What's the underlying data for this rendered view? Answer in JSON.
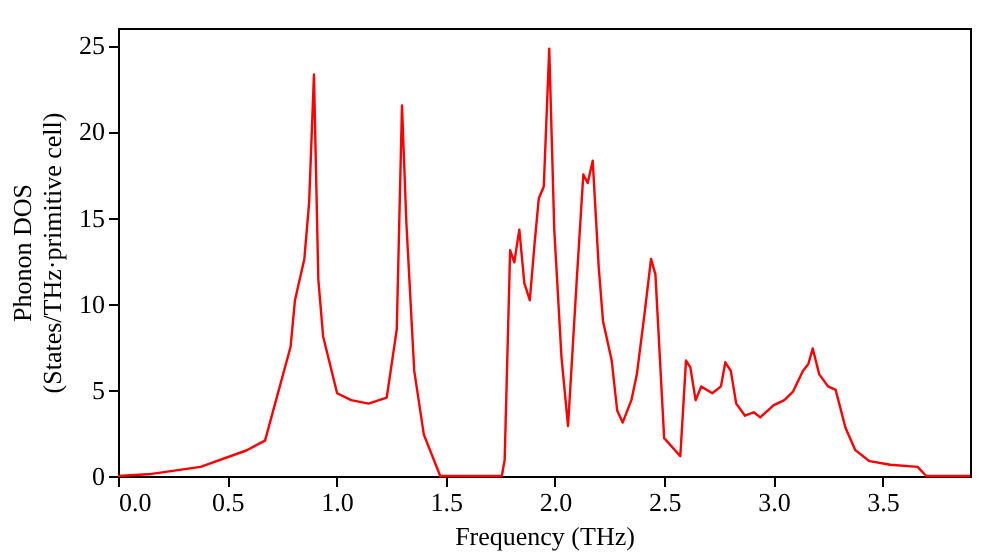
{
  "chart_data": {
    "type": "line",
    "xlabel": "Frequency (THz)",
    "ylabel": "Phonon DOS\n(States/THz·primitive cell)",
    "x": [
      0,
      0.154,
      0.378,
      0.587,
      0.673,
      0.79,
      0.81,
      0.853,
      0.875,
      0.897,
      0.917,
      0.939,
      1.003,
      1.067,
      1.147,
      1.23,
      1.276,
      1.3,
      1.32,
      1.356,
      1.4,
      1.475,
      1.757,
      1.77,
      1.795,
      1.814,
      1.837,
      1.86,
      1.885,
      1.907,
      1.926,
      1.949,
      1.974,
      1.997,
      2.03,
      2.06,
      2.1,
      2.13,
      2.15,
      2.173,
      2.2,
      2.22,
      2.26,
      2.285,
      2.31,
      2.35,
      2.375,
      2.41,
      2.44,
      2.46,
      2.5,
      2.574,
      2.6,
      2.62,
      2.644,
      2.67,
      2.72,
      2.76,
      2.78,
      2.805,
      2.83,
      2.87,
      2.91,
      2.94,
      3.0,
      3.05,
      3.09,
      3.135,
      3.16,
      3.18,
      3.21,
      3.25,
      3.285,
      3.33,
      3.375,
      3.44,
      3.535,
      3.66,
      3.7,
      3.9
    ],
    "series": [
      {
        "color": "#ff0000",
        "values": [
          0,
          0.12,
          0.53,
          1.48,
          2.05,
          7.5,
          10.2,
          12.6,
          15.9,
          23.3,
          11.4,
          8.1,
          4.8,
          4.4,
          4.2,
          4.55,
          8.5,
          21.5,
          14.7,
          6.1,
          2.4,
          0,
          0,
          0.95,
          13.1,
          12.4,
          14.3,
          11.2,
          10.2,
          13.5,
          16.1,
          16.8,
          24.8,
          14.3,
          6.9,
          2.9,
          11.4,
          17.5,
          17.0,
          18.3,
          12.2,
          9.0,
          6.7,
          3.8,
          3.1,
          4.4,
          5.9,
          9.4,
          12.6,
          11.7,
          2.2,
          1.15,
          6.7,
          6.3,
          4.4,
          5.2,
          4.8,
          5.2,
          6.6,
          6.1,
          4.2,
          3.5,
          3.7,
          3.4,
          4.1,
          4.4,
          4.9,
          6.1,
          6.5,
          7.4,
          5.9,
          5.2,
          5.0,
          2.8,
          1.5,
          0.86,
          0.65,
          0.53,
          0,
          0
        ]
      }
    ],
    "xlim": [
      0,
      3.9
    ],
    "xticks": [
      {
        "value": 0,
        "label": "0.0"
      },
      0.5,
      {
        "value": 1,
        "label": "1.0"
      },
      1.5,
      {
        "value": 2,
        "label": "2.0"
      },
      2.5,
      {
        "value": 3,
        "label": "3.0"
      },
      3.5
    ],
    "ylim": [
      0,
      26
    ],
    "yticks": [
      0,
      5,
      10,
      15,
      20,
      25
    ],
    "grid": false,
    "legend": false,
    "marker": "none",
    "line_style": "solid"
  }
}
